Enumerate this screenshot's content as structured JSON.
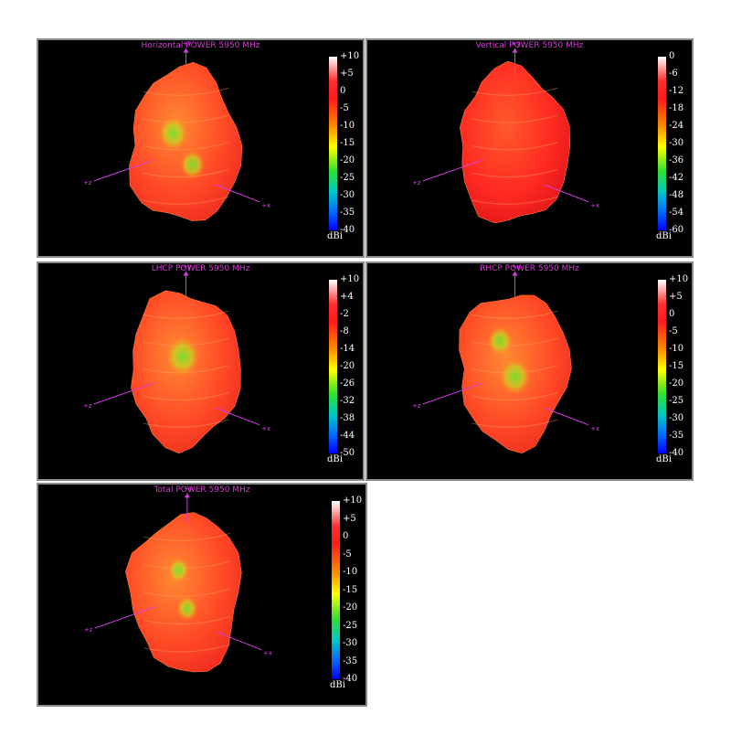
{
  "chart_data": [
    {
      "type": "3d-radiation-pattern",
      "title": "Horizontal POWER 5950  MHz",
      "axes": [
        "+y",
        "+z",
        "+x"
      ],
      "colorbar": {
        "unit": "dBi",
        "ticks": [
          "+10",
          "+5",
          "0",
          "-5",
          "-10",
          "-15",
          "-20",
          "-25",
          "-30",
          "-35",
          "-40"
        ],
        "range": [
          -40,
          10
        ]
      },
      "shade": "orange",
      "spots": [
        {
          "u": 0.38,
          "v": 0.42,
          "s": 0.14
        },
        {
          "u": 0.56,
          "v": 0.62,
          "s": 0.12
        }
      ]
    },
    {
      "type": "3d-radiation-pattern",
      "title": "Vertical POWER 5950  MHz",
      "axes": [
        "+y",
        "+z",
        "+x"
      ],
      "colorbar": {
        "unit": "dBi",
        "ticks": [
          "0",
          "-6",
          "-12",
          "-18",
          "-24",
          "-30",
          "-36",
          "-42",
          "-48",
          "-54",
          "-60"
        ],
        "range": [
          -60,
          0
        ]
      },
      "shade": "red",
      "spots": []
    },
    {
      "type": "3d-radiation-pattern",
      "title": "LHCP POWER 5950  MHz",
      "axes": [
        "+y",
        "+z",
        "+x"
      ],
      "colorbar": {
        "unit": "dBi",
        "ticks": [
          "+10",
          "+4",
          "-2",
          "-8",
          "-14",
          "-20",
          "-26",
          "-32",
          "-38",
          "-44",
          "-50"
        ],
        "range": [
          -50,
          10
        ]
      },
      "shade": "orange",
      "spots": [
        {
          "u": 0.47,
          "v": 0.42,
          "s": 0.16
        }
      ]
    },
    {
      "type": "3d-radiation-pattern",
      "title": "RHCP POWER 5950  MHz",
      "axes": [
        "+y",
        "+z",
        "+x"
      ],
      "colorbar": {
        "unit": "dBi",
        "ticks": [
          "+10",
          "+5",
          "0",
          "-5",
          "-10",
          "-15",
          "-20",
          "-25",
          "-30",
          "-35",
          "-40"
        ],
        "range": [
          -40,
          10
        ]
      },
      "shade": "orange",
      "spots": [
        {
          "u": 0.36,
          "v": 0.32,
          "s": 0.12
        },
        {
          "u": 0.5,
          "v": 0.55,
          "s": 0.15
        }
      ]
    },
    {
      "type": "3d-radiation-pattern",
      "title": "Total POWER 5950  MHz",
      "axes": [
        "+y",
        "+z",
        "+x"
      ],
      "colorbar": {
        "unit": "dBi",
        "ticks": [
          "+10",
          "+5",
          "0",
          "-5",
          "-10",
          "-15",
          "-20",
          "-25",
          "-30",
          "-35",
          "-40"
        ],
        "range": [
          -40,
          10
        ]
      },
      "shade": "orange",
      "spots": [
        {
          "u": 0.42,
          "v": 0.36,
          "s": 0.1
        },
        {
          "u": 0.5,
          "v": 0.6,
          "s": 0.1
        }
      ]
    }
  ]
}
